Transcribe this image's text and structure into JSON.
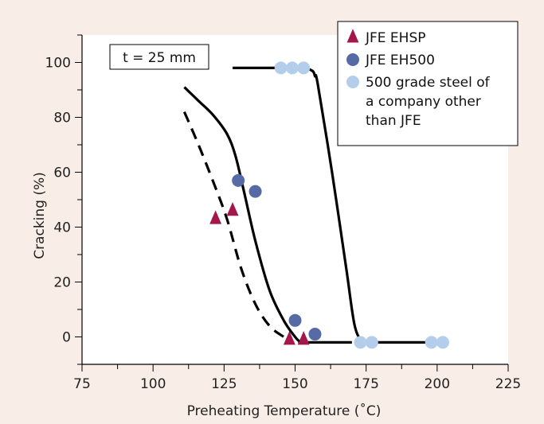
{
  "chart_data": {
    "type": "scatter",
    "title": "",
    "xlabel": "Preheating Temperature (˚C)",
    "ylabel": "Cracking (%)",
    "xlim": [
      75,
      225
    ],
    "ylim": [
      -10,
      110
    ],
    "x_ticks": [
      75,
      100,
      125,
      150,
      175,
      200,
      225
    ],
    "y_ticks": [
      0,
      20,
      40,
      60,
      80,
      100
    ],
    "grid": false,
    "legend_position": "top-right",
    "annotation": "t = 25 mm",
    "series": [
      {
        "name": "JFE EHSP",
        "marker": "triangle",
        "color": "#a3174a",
        "x": [
          122,
          128,
          148,
          153
        ],
        "y": [
          43,
          46,
          -1,
          -1
        ]
      },
      {
        "name": "JFE EH500",
        "marker": "circle",
        "color": "#566aa5",
        "x": [
          130,
          136,
          150,
          157
        ],
        "y": [
          57,
          53,
          6,
          1
        ]
      },
      {
        "name": "500 grade steel of a company other than JFE",
        "legend_lines": [
          "500 grade steel of",
          "a company other",
          "than JFE"
        ],
        "marker": "circle",
        "color": "#b4cdea",
        "x": [
          145,
          149,
          153,
          173,
          177,
          198,
          202
        ],
        "y": [
          98,
          98,
          98,
          -2,
          -2,
          -2,
          -2
        ]
      }
    ],
    "curves": [
      {
        "style": "dashed",
        "x": [
          111,
          116,
          121,
          126,
          131,
          136,
          141,
          146,
          149
        ],
        "y": [
          82,
          70,
          57,
          43,
          25,
          12,
          4,
          0,
          -2
        ]
      },
      {
        "style": "solid",
        "x": [
          111,
          116,
          121,
          126,
          129,
          132,
          136,
          141,
          146,
          150,
          152,
          153,
          170
        ],
        "y": [
          91,
          86,
          81,
          74,
          66,
          53,
          35,
          17,
          6,
          0,
          -2,
          -2,
          -2
        ]
      },
      {
        "style": "solid",
        "x": [
          128,
          140,
          152,
          156,
          157,
          158,
          163,
          168,
          171,
          174,
          176,
          200
        ],
        "y": [
          98,
          98,
          98,
          97,
          95,
          92,
          60,
          25,
          4,
          -2,
          -2,
          -2
        ]
      }
    ]
  }
}
